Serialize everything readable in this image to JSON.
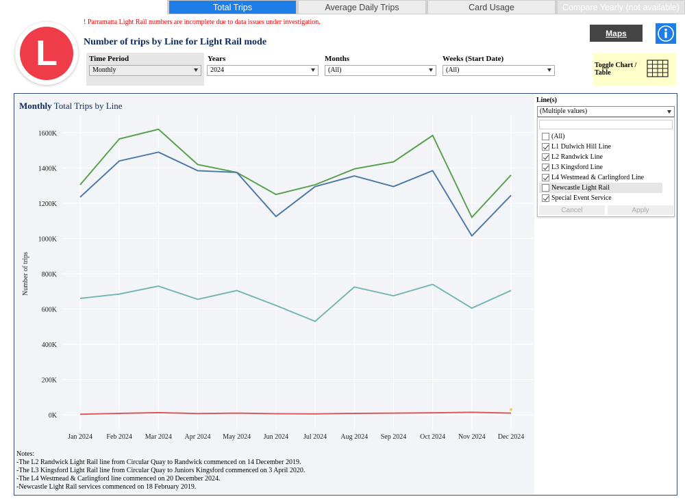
{
  "tabs": [
    {
      "label": "Total Trips",
      "active": true
    },
    {
      "label": "Average Daily Trips",
      "active": false
    },
    {
      "label": "Card Usage",
      "active": false
    },
    {
      "label": "Compare Yearly (not available)",
      "active": false,
      "disabled": true
    }
  ],
  "warning": "! Parramatta Light Rail numbers are incomplete due to data issues under investigation.",
  "logo_letter": "L",
  "page_title": "Number of trips by Line for Light Rail mode",
  "maps_label": "Maps",
  "info_icon": "info-icon",
  "filters": {
    "time_period": {
      "label": "Time Period",
      "value": "Monthly"
    },
    "years": {
      "label": "Years",
      "value": "2024"
    },
    "months": {
      "label": "Months",
      "value": "(All)"
    },
    "weeks": {
      "label": "Weeks (Start Date)",
      "value": "(All)"
    }
  },
  "toggle": {
    "label_line1": "Toggle Chart /",
    "label_line2": "Table",
    "icon": "table-grid-icon"
  },
  "chart_data": {
    "type": "line",
    "title_bold": "Monthly",
    "title_rest": " Total Trips by Line",
    "ylabel": "Number of trips",
    "xlabel": "",
    "categories": [
      "Jan 2024",
      "Feb 2024",
      "Mar 2024",
      "Apr 2024",
      "May 2024",
      "Jun 2024",
      "Jul 2024",
      "Aug 2024",
      "Sep 2024",
      "Oct 2024",
      "Nov 2024",
      "Dec 2024"
    ],
    "ylim": [
      0,
      1700000
    ],
    "yticks": [
      0,
      200000,
      400000,
      600000,
      800000,
      1000000,
      1200000,
      1400000,
      1600000
    ],
    "ytick_labels": [
      "0K",
      "200K",
      "400K",
      "600K",
      "800K",
      "1000K",
      "1200K",
      "1400K",
      "1600K"
    ],
    "grid": true,
    "series": [
      {
        "color": "#59a14f",
        "values": [
          1305000,
          1565000,
          1620000,
          1420000,
          1375000,
          1250000,
          1305000,
          1395000,
          1435000,
          1585000,
          1120000,
          1360000
        ]
      },
      {
        "color": "#4e79a7",
        "values": [
          1235000,
          1440000,
          1490000,
          1385000,
          1375000,
          1125000,
          1295000,
          1355000,
          1295000,
          1385000,
          1015000,
          1245000
        ]
      },
      {
        "color": "#76b7b2",
        "values": [
          660000,
          685000,
          730000,
          655000,
          705000,
          620000,
          530000,
          725000,
          675000,
          740000,
          605000,
          705000
        ]
      },
      {
        "color": "#e15759",
        "values": [
          3000,
          8000,
          12000,
          7000,
          9000,
          6000,
          5000,
          8000,
          9000,
          11000,
          14000,
          9000
        ]
      },
      {
        "color": "#f1ce63",
        "values": [
          null,
          null,
          null,
          null,
          null,
          null,
          null,
          null,
          null,
          null,
          null,
          30000
        ]
      }
    ]
  },
  "lines_filter": {
    "label": "Line(s)",
    "value": "(Multiple values)",
    "options": [
      {
        "label": "(All)",
        "checked": false
      },
      {
        "label": "L1 Dulwich Hill Line",
        "checked": true
      },
      {
        "label": "L2 Randwick Line",
        "checked": true
      },
      {
        "label": "L3 Kingsford Line",
        "checked": true
      },
      {
        "label": "L4 Westmead & Carlingford Line",
        "checked": true
      },
      {
        "label": "Newcastle Light Rail",
        "checked": false
      },
      {
        "label": "Special Event Service",
        "checked": true
      }
    ],
    "cancel_label": "Cancel",
    "apply_label": "Apply"
  },
  "notes": [
    "Notes:",
    "-The L2 Randwick Light Rail line from Circular Quay to Randwick commenced on 14 December 2019.",
    "-The L3 Kingsford Light Rail line from Circular Quay to Juniors Kingsford commenced on 3 April 2020.",
    "-The L4 Westmead & Carlingford line commenced on 20 December 2024.",
    "-Newcastle Light Rail services commenced on 18 February 2019."
  ]
}
